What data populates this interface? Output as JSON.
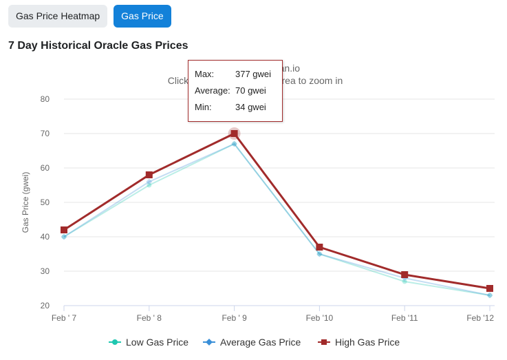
{
  "tabs": [
    {
      "label": "Gas Price Heatmap",
      "active": false
    },
    {
      "label": "Gas Price",
      "active": true
    }
  ],
  "heading": "7 Day Historical Oracle Gas Prices",
  "chart_data": {
    "type": "line",
    "subtitle_source": "Source: Etherscan.io",
    "subtitle_zoom": "Click and drag in the plot area to zoom in",
    "ylabel": "Gas Price (gwei)",
    "ylim": [
      20,
      80
    ],
    "yticks": [
      20,
      30,
      40,
      50,
      60,
      70,
      80
    ],
    "categories": [
      "Feb ' 7",
      "Feb ' 8",
      "Feb ' 9",
      "Feb '10",
      "Feb '11",
      "Feb '12"
    ],
    "series": [
      {
        "name": "Low Gas Price",
        "color": "#1fc7b0",
        "marker": "circle",
        "values": [
          40,
          55,
          67,
          35,
          27,
          23
        ]
      },
      {
        "name": "Average Gas Price",
        "color": "#3a8fd8",
        "marker": "diamond",
        "values": [
          40,
          56,
          67,
          35,
          28,
          23
        ]
      },
      {
        "name": "High Gas Price",
        "color": "#a12b2b",
        "marker": "square",
        "values": [
          42,
          58,
          70,
          37,
          29,
          25
        ]
      }
    ],
    "grid": true,
    "legend_position": "bottom-center"
  },
  "tooltip": {
    "rows": [
      {
        "label": "Max:",
        "value": "377 gwei"
      },
      {
        "label": "Average:",
        "value": "70 gwei"
      },
      {
        "label": "Min:",
        "value": "34 gwei"
      }
    ]
  }
}
